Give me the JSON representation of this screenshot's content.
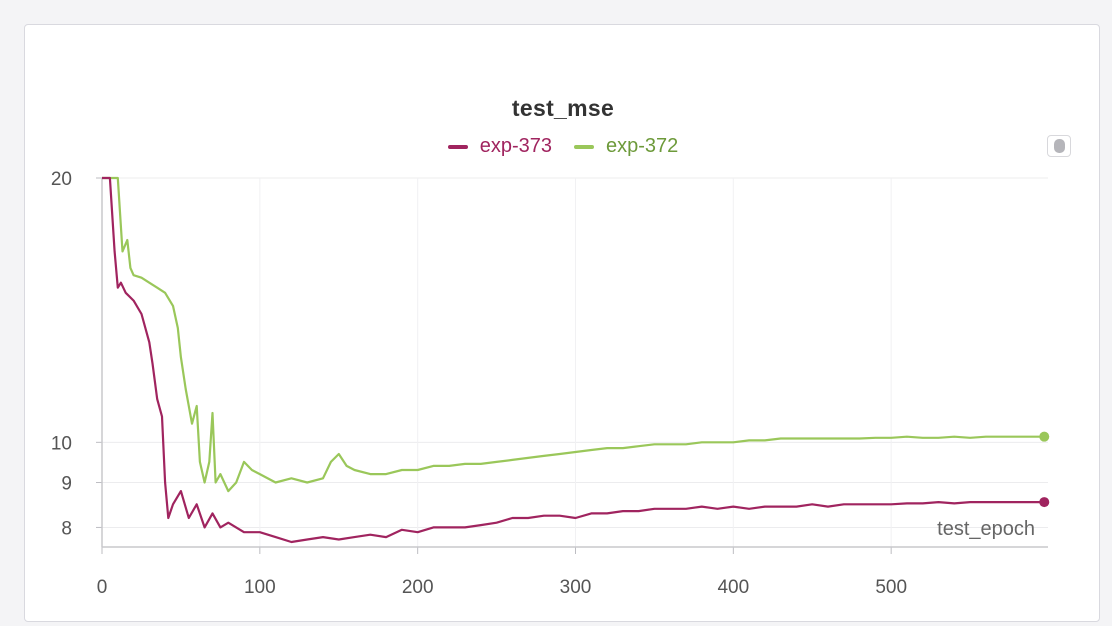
{
  "chart_data": {
    "type": "line",
    "title": "test_mse",
    "xlabel": "test_epoch",
    "ylabel": "",
    "xlim": [
      0,
      600
    ],
    "ylim": [
      7.6,
      20
    ],
    "x_ticks": [
      0,
      100,
      200,
      300,
      400,
      500
    ],
    "y_ticks": [
      8,
      9,
      10,
      20
    ],
    "grid": true,
    "legend": "top-center",
    "series": [
      {
        "name": "exp-373",
        "color": "#a0245f",
        "points": [
          [
            0,
            20.0
          ],
          [
            5,
            20.0
          ],
          [
            8,
            16.5
          ],
          [
            10,
            15.0
          ],
          [
            12,
            15.2
          ],
          [
            15,
            14.8
          ],
          [
            20,
            14.5
          ],
          [
            25,
            14.0
          ],
          [
            30,
            13.0
          ],
          [
            32,
            12.3
          ],
          [
            35,
            11.2
          ],
          [
            38,
            10.7
          ],
          [
            40,
            9.0
          ],
          [
            42,
            8.2
          ],
          [
            45,
            8.5
          ],
          [
            50,
            8.8
          ],
          [
            55,
            8.2
          ],
          [
            60,
            8.5
          ],
          [
            65,
            8.0
          ],
          [
            70,
            8.3
          ],
          [
            75,
            8.0
          ],
          [
            80,
            8.1
          ],
          [
            90,
            7.9
          ],
          [
            100,
            7.9
          ],
          [
            110,
            7.8
          ],
          [
            120,
            7.7
          ],
          [
            130,
            7.75
          ],
          [
            140,
            7.8
          ],
          [
            150,
            7.75
          ],
          [
            160,
            7.8
          ],
          [
            170,
            7.85
          ],
          [
            180,
            7.8
          ],
          [
            190,
            7.95
          ],
          [
            200,
            7.9
          ],
          [
            210,
            8.0
          ],
          [
            220,
            8.0
          ],
          [
            230,
            8.0
          ],
          [
            240,
            8.05
          ],
          [
            250,
            8.1
          ],
          [
            260,
            8.2
          ],
          [
            270,
            8.2
          ],
          [
            280,
            8.25
          ],
          [
            290,
            8.25
          ],
          [
            300,
            8.2
          ],
          [
            310,
            8.3
          ],
          [
            320,
            8.3
          ],
          [
            330,
            8.35
          ],
          [
            340,
            8.35
          ],
          [
            350,
            8.4
          ],
          [
            360,
            8.4
          ],
          [
            370,
            8.4
          ],
          [
            380,
            8.45
          ],
          [
            390,
            8.4
          ],
          [
            400,
            8.45
          ],
          [
            410,
            8.4
          ],
          [
            420,
            8.45
          ],
          [
            430,
            8.45
          ],
          [
            440,
            8.45
          ],
          [
            450,
            8.5
          ],
          [
            460,
            8.45
          ],
          [
            470,
            8.5
          ],
          [
            480,
            8.5
          ],
          [
            490,
            8.5
          ],
          [
            500,
            8.5
          ],
          [
            510,
            8.52
          ],
          [
            520,
            8.52
          ],
          [
            530,
            8.55
          ],
          [
            540,
            8.52
          ],
          [
            550,
            8.55
          ],
          [
            560,
            8.55
          ],
          [
            570,
            8.55
          ],
          [
            580,
            8.55
          ],
          [
            590,
            8.55
          ],
          [
            597,
            8.55
          ]
        ]
      },
      {
        "name": "exp-372",
        "color": "#9ac75a",
        "points": [
          [
            0,
            20.0
          ],
          [
            5,
            20.0
          ],
          [
            10,
            20.0
          ],
          [
            13,
            16.5
          ],
          [
            16,
            17.0
          ],
          [
            18,
            15.8
          ],
          [
            20,
            15.5
          ],
          [
            25,
            15.4
          ],
          [
            30,
            15.2
          ],
          [
            35,
            15.0
          ],
          [
            40,
            14.8
          ],
          [
            45,
            14.3
          ],
          [
            48,
            13.5
          ],
          [
            50,
            12.5
          ],
          [
            53,
            11.5
          ],
          [
            57,
            10.5
          ],
          [
            60,
            11.0
          ],
          [
            62,
            9.5
          ],
          [
            65,
            9.0
          ],
          [
            68,
            9.5
          ],
          [
            70,
            10.8
          ],
          [
            72,
            9.0
          ],
          [
            75,
            9.2
          ],
          [
            80,
            8.8
          ],
          [
            85,
            9.0
          ],
          [
            90,
            9.5
          ],
          [
            95,
            9.3
          ],
          [
            100,
            9.2
          ],
          [
            110,
            9.0
          ],
          [
            120,
            9.1
          ],
          [
            130,
            9.0
          ],
          [
            140,
            9.1
          ],
          [
            145,
            9.5
          ],
          [
            150,
            9.7
          ],
          [
            155,
            9.4
          ],
          [
            160,
            9.3
          ],
          [
            170,
            9.2
          ],
          [
            180,
            9.2
          ],
          [
            190,
            9.3
          ],
          [
            200,
            9.3
          ],
          [
            210,
            9.4
          ],
          [
            220,
            9.4
          ],
          [
            230,
            9.45
          ],
          [
            240,
            9.45
          ],
          [
            250,
            9.5
          ],
          [
            260,
            9.55
          ],
          [
            270,
            9.6
          ],
          [
            280,
            9.65
          ],
          [
            290,
            9.7
          ],
          [
            300,
            9.75
          ],
          [
            310,
            9.8
          ],
          [
            320,
            9.85
          ],
          [
            330,
            9.85
          ],
          [
            340,
            9.9
          ],
          [
            350,
            9.95
          ],
          [
            360,
            9.95
          ],
          [
            370,
            9.95
          ],
          [
            380,
            10.0
          ],
          [
            390,
            10.0
          ],
          [
            400,
            10.0
          ],
          [
            410,
            10.05
          ],
          [
            420,
            10.05
          ],
          [
            430,
            10.1
          ],
          [
            440,
            10.1
          ],
          [
            450,
            10.1
          ],
          [
            460,
            10.1
          ],
          [
            470,
            10.1
          ],
          [
            480,
            10.1
          ],
          [
            490,
            10.12
          ],
          [
            500,
            10.12
          ],
          [
            510,
            10.15
          ],
          [
            520,
            10.12
          ],
          [
            530,
            10.12
          ],
          [
            540,
            10.15
          ],
          [
            550,
            10.12
          ],
          [
            560,
            10.15
          ],
          [
            570,
            10.15
          ],
          [
            580,
            10.15
          ],
          [
            590,
            10.15
          ],
          [
            597,
            10.15
          ]
        ]
      }
    ]
  }
}
